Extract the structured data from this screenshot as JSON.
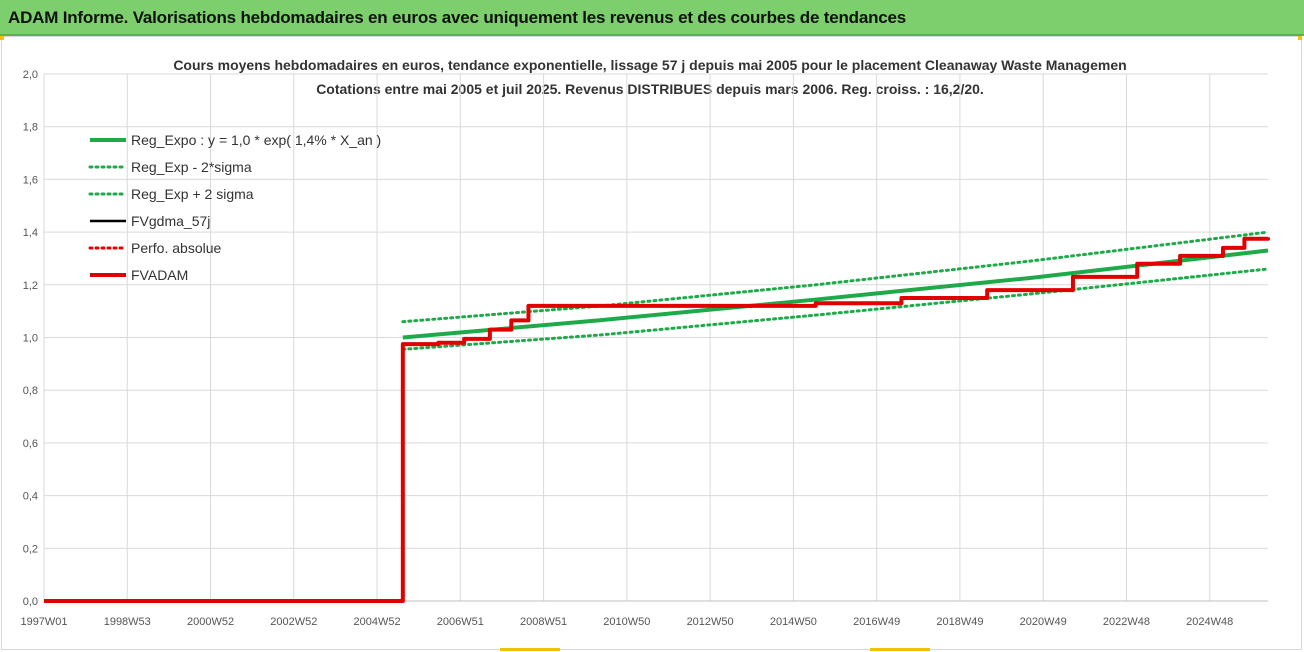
{
  "header": {
    "title": "ADAM Informe. Valorisations hebdomadaires en euros avec uniquement les revenus et des courbes de tendances"
  },
  "colors": {
    "header_bg": "#7ccf6c",
    "reg_expo": "#1faa4a",
    "fvgdma": "#000000",
    "fvadam": "#e00000",
    "grid": "#d9d9d9"
  },
  "chart_data": {
    "type": "line",
    "title": [
      "Cours moyens hebdomadaires en euros, tendance exponentielle, lissage 57 j depuis mai 2005 pour le placement Cleanaway Waste Managemen",
      "Cotations entre mai 2005 et juil 2025. Revenus DISTRIBUES depuis mars 2006.  Reg. croiss. : 16,2/20."
    ],
    "x_tick_labels": [
      "1997W01",
      "1998W53",
      "2000W52",
      "2002W52",
      "2004W52",
      "2006W51",
      "2008W51",
      "2010W50",
      "2012W50",
      "2014W50",
      "2016W49",
      "2018W49",
      "2020W49",
      "2022W48",
      "2024W48"
    ],
    "x_range": [
      1997.0,
      2025.55
    ],
    "ylim": [
      0,
      2.0
    ],
    "y_ticks": [
      "0,0",
      "0,2",
      "0,4",
      "0,6",
      "0,8",
      "1,0",
      "1,2",
      "1,4",
      "1,6",
      "1,8",
      "2,0"
    ],
    "grid": true,
    "legend_position": "top-left",
    "legend": [
      {
        "label": "Reg_Expo : y = 1,0 * exp( 1,4% *  X_an )",
        "style": "solid-thick",
        "color": "#1faa4a"
      },
      {
        "label": "Reg_Exp - 2*sigma",
        "style": "dotted",
        "color": "#1faa4a"
      },
      {
        "label": "Reg_Exp + 2 sigma",
        "style": "dotted",
        "color": "#1faa4a"
      },
      {
        "label": "FVgdma_57j",
        "style": "solid",
        "color": "#000000"
      },
      {
        "label": "Perfo. absolue",
        "style": "dotted",
        "color": "#e00000"
      },
      {
        "label": "FVADAM",
        "style": "solid-thick",
        "color": "#e00000"
      }
    ],
    "series": [
      {
        "name": "Reg_Expo : y = 1,0 * exp( 1,4% *  X_an )",
        "x": [
          2005.37,
          2010.0,
          2015.0,
          2020.0,
          2025.55
        ],
        "y": [
          1.0,
          1.066,
          1.144,
          1.226,
          1.33
        ]
      },
      {
        "name": "Reg_Exp - 2*sigma",
        "x": [
          2005.37,
          2010.0,
          2015.0,
          2020.0,
          2025.55
        ],
        "y": [
          0.955,
          1.01,
          1.085,
          1.165,
          1.26
        ]
      },
      {
        "name": "Reg_Exp + 2 sigma",
        "x": [
          2005.37,
          2010.0,
          2015.0,
          2020.0,
          2025.55
        ],
        "y": [
          1.06,
          1.12,
          1.2,
          1.29,
          1.4
        ]
      },
      {
        "name": "FVgdma_57j",
        "x": [
          1997.0,
          2005.37,
          2005.37
        ],
        "y": [
          0.0,
          0.0,
          0.975
        ]
      },
      {
        "name": "FVADAM",
        "x": [
          1997.0,
          2005.37,
          2005.37,
          2006.2,
          2006.8,
          2007.4,
          2007.9,
          2008.3,
          2012.7,
          2015.0,
          2017.0,
          2019.0,
          2021.0,
          2022.5,
          2023.5,
          2024.5,
          2025.0,
          2025.55
        ],
        "y": [
          0.0,
          0.0,
          0.975,
          0.98,
          0.995,
          1.03,
          1.065,
          1.12,
          1.12,
          1.13,
          1.15,
          1.18,
          1.23,
          1.28,
          1.31,
          1.34,
          1.375,
          1.38
        ]
      }
    ]
  }
}
